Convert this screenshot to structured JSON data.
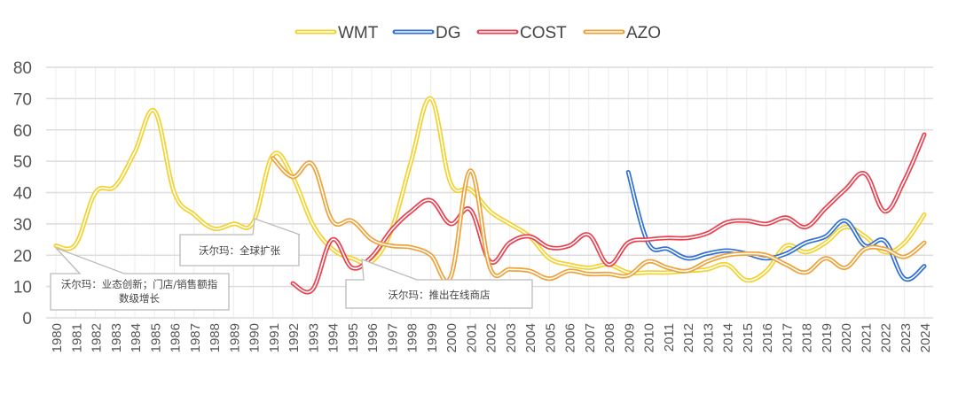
{
  "chart_data": {
    "type": "line",
    "title": "",
    "xlabel": "",
    "ylabel": "",
    "ylim": [
      0,
      80
    ],
    "yticks": [
      0,
      10,
      20,
      30,
      40,
      50,
      60,
      70,
      80
    ],
    "grid": true,
    "legend_position": "top",
    "x": [
      1980,
      1981,
      1982,
      1983,
      1984,
      1985,
      1986,
      1987,
      1988,
      1989,
      1990,
      1991,
      1992,
      1993,
      1994,
      1995,
      1996,
      1997,
      1998,
      1999,
      2000,
      2001,
      2002,
      2003,
      2004,
      2005,
      2006,
      2007,
      2008,
      2009,
      2010,
      2011,
      2012,
      2013,
      2014,
      2015,
      2016,
      2017,
      2018,
      2019,
      2020,
      2021,
      2022,
      2023,
      2024
    ],
    "series": [
      {
        "name": "WMT",
        "color": "#f2d22e",
        "values": [
          23,
          23.5,
          40,
          42,
          53,
          66,
          40,
          33,
          28.5,
          30,
          30.5,
          52,
          45,
          30,
          22,
          19,
          18,
          28,
          50,
          70,
          43,
          41,
          34,
          30,
          26,
          19,
          17,
          16,
          17,
          14.5,
          14.5,
          14.5,
          15,
          15.5,
          17,
          12,
          15,
          23,
          21,
          24,
          29,
          26,
          21,
          24,
          33
        ]
      },
      {
        "name": "DG",
        "color": "#2f6fd6",
        "values": [
          null,
          null,
          null,
          null,
          null,
          null,
          null,
          null,
          null,
          null,
          null,
          null,
          null,
          null,
          null,
          null,
          null,
          null,
          null,
          null,
          null,
          null,
          null,
          null,
          null,
          null,
          null,
          null,
          null,
          46.5,
          24,
          22,
          19,
          20.5,
          21.5,
          20.5,
          19,
          20.5,
          24,
          26,
          31,
          23,
          24.5,
          12.5,
          16.5
        ]
      },
      {
        "name": "COST",
        "color": "#e8414f",
        "values": [
          null,
          null,
          null,
          null,
          null,
          null,
          null,
          null,
          null,
          null,
          null,
          null,
          11,
          9,
          25,
          16,
          19.5,
          28,
          34,
          37.5,
          30,
          34.5,
          18,
          24,
          26,
          22.5,
          23,
          26.5,
          17,
          24,
          25,
          25.5,
          25.5,
          27,
          30.5,
          31,
          30,
          32,
          29,
          35,
          41,
          46,
          34,
          44,
          58.5
        ]
      },
      {
        "name": "AZO",
        "color": "#eda23a",
        "values": [
          null,
          null,
          null,
          null,
          null,
          null,
          null,
          null,
          null,
          null,
          null,
          51,
          45,
          49,
          31,
          31,
          25,
          23,
          22.5,
          20,
          13,
          47,
          16,
          15.5,
          15,
          12.5,
          15,
          14,
          14,
          13.5,
          18,
          16,
          15,
          18,
          20,
          20.5,
          20,
          17,
          14.5,
          19,
          16,
          22,
          22,
          19.5,
          24
        ]
      }
    ],
    "annotations": [
      {
        "text": "沃尔玛：业态创新；门店/销售额指数级增长",
        "line1": "沃尔玛：业态创新；门店/销售额指",
        "line2": "数级增长",
        "x": 1980,
        "y": 23
      },
      {
        "text": "沃尔玛：全球扩张",
        "x": 1990,
        "y": 30.5
      },
      {
        "text": "沃尔玛：推出在线商店",
        "x": 1996,
        "y": 18
      }
    ]
  }
}
